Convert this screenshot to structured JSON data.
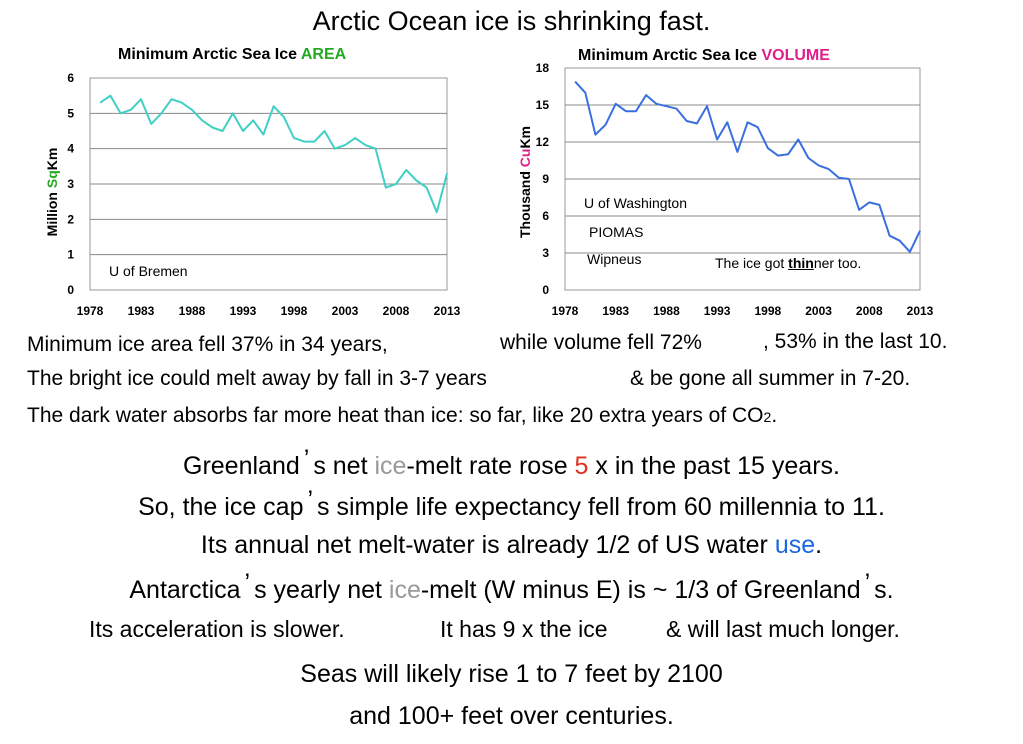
{
  "main_title": "Arctic Ocean ice is shrinking fast.",
  "colors": {
    "area_line": "#40cfc4",
    "volume_line": "#3a6fe0",
    "area_highlight": "#22aa22",
    "volume_highlight": "#e0208a",
    "ice_gray": "#999999",
    "five_red": "#e0301e",
    "use_blue": "#1a66dd",
    "grid": "#888888",
    "frame": "#999999"
  },
  "chart_data": [
    {
      "type": "line",
      "title_prefix": "Minimum Arctic Sea Ice ",
      "title_highlight": "AREA",
      "ylabel_pre": "Million ",
      "ylabel_highlight": "Sq",
      "ylabel_post": "Km",
      "xlabel": "",
      "xlim": [
        1978,
        2013
      ],
      "ylim": [
        0,
        6
      ],
      "xticks": [
        "1978",
        "1983",
        "1988",
        "1993",
        "1998",
        "2003",
        "2008",
        "2013"
      ],
      "yticks": [
        "0",
        "1",
        "2",
        "3",
        "4",
        "5",
        "6"
      ],
      "grid": true,
      "annotations": [
        "U of Bremen"
      ],
      "series": [
        {
          "x": [
            1979,
            1980,
            1981,
            1982,
            1983,
            1984,
            1985,
            1986,
            1987,
            1988,
            1989,
            1990,
            1991,
            1992,
            1993,
            1994,
            1995,
            1996,
            1997,
            1998,
            1999,
            2000,
            2001,
            2002,
            2003,
            2004,
            2005,
            2006,
            2007,
            2008,
            2009,
            2010,
            2011,
            2012,
            2013
          ],
          "y": [
            5.3,
            5.5,
            5.0,
            5.1,
            5.4,
            4.7,
            5.0,
            5.4,
            5.3,
            5.1,
            4.8,
            4.6,
            4.5,
            5.0,
            4.5,
            4.8,
            4.4,
            5.2,
            4.9,
            4.3,
            4.2,
            4.2,
            4.5,
            4.0,
            4.1,
            4.3,
            4.1,
            4.0,
            2.9,
            3.0,
            3.4,
            3.1,
            2.9,
            2.2,
            3.3
          ]
        }
      ]
    },
    {
      "type": "line",
      "title_prefix": "Minimum Arctic Sea Ice ",
      "title_highlight": "VOLUME",
      "ylabel_pre": "Thousand ",
      "ylabel_highlight": "Cu",
      "ylabel_post": "Km",
      "xlabel": "",
      "xlim": [
        1978,
        2013
      ],
      "ylim": [
        0,
        18
      ],
      "xticks": [
        "1978",
        "1983",
        "1988",
        "1993",
        "1998",
        "2003",
        "2008",
        "2013"
      ],
      "yticks": [
        "0",
        "3",
        "6",
        "9",
        "12",
        "15",
        "18"
      ],
      "grid": true,
      "annotations": [
        "U of Washington",
        "PIOMAS",
        "Wipneus"
      ],
      "note_pre": "The ice got ",
      "note_emph": "thin",
      "note_post": "ner too.",
      "series": [
        {
          "x": [
            1979,
            1980,
            1981,
            1982,
            1983,
            1984,
            1985,
            1986,
            1987,
            1988,
            1989,
            1990,
            1991,
            1992,
            1993,
            1994,
            1995,
            1996,
            1997,
            1998,
            1999,
            2000,
            2001,
            2002,
            2003,
            2004,
            2005,
            2006,
            2007,
            2008,
            2009,
            2010,
            2011,
            2012,
            2013
          ],
          "y": [
            16.9,
            16.0,
            12.6,
            13.4,
            15.1,
            14.5,
            14.5,
            15.8,
            15.1,
            14.9,
            14.7,
            13.7,
            13.5,
            14.9,
            12.2,
            13.6,
            11.2,
            13.6,
            13.2,
            11.5,
            10.9,
            11.0,
            12.2,
            10.7,
            10.1,
            9.8,
            9.1,
            9.0,
            6.5,
            7.1,
            6.9,
            4.4,
            4.0,
            3.1,
            4.8
          ]
        }
      ]
    }
  ],
  "text": {
    "l1a": "Minimum ice area fell 37% in 34 years,",
    "l1b": "while volume fell 72%",
    "l1c": ", 53% in the last 10.",
    "l2a": "The bright ice could melt away by fall in 3-7 years",
    "l2b": "& be gone all summer in 7-20.",
    "l3a": "The dark water absorbs far more heat than ice: so far, like 20 extra years of CO",
    "l3sub": "2",
    "l3end": ".",
    "g1a": "Greenland",
    "g1apos": "’",
    "g1b": "s net ",
    "g1ice": "ice",
    "g1c": "-melt rate rose ",
    "g1five": "5",
    "g1d": " x in the past 15 years.",
    "g2a": "So, the ice cap",
    "g2apos": "’",
    "g2b": "s simple life expectancy fell from 60 millennia to 11.",
    "g3a": "Its annual net melt-water is already 1/2 of US water ",
    "g3use": "use",
    "g3end": ".",
    "a1a": "Antarctica",
    "a1apos": "’",
    "a1b": "s yearly net ",
    "a1ice": "ice",
    "a1c": "-melt (W minus E) is ~ 1/3 of Greenland",
    "a1apos2": "’",
    "a1d": "s.",
    "a2a": "Its acceleration is slower.",
    "a2b": "It has 9 x the ice",
    "a2c": "& will last much longer.",
    "s1": "Seas will likely rise 1 to 7 feet by 2100",
    "s2": "and 100+ feet over centuries."
  }
}
